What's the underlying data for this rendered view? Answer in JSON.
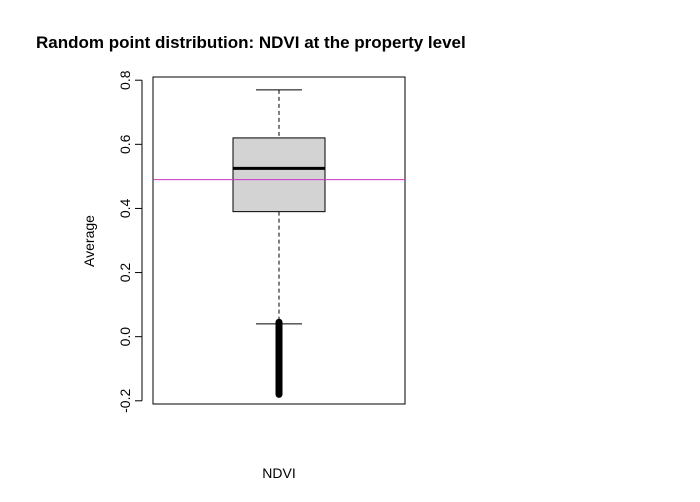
{
  "chart_data": {
    "type": "boxplot",
    "title": "Random point distribution: NDVI at the property level",
    "xlabel": "NDVI",
    "ylabel": "Average",
    "ylim": [
      -0.21,
      0.81
    ],
    "yticks": [
      -0.2,
      0.0,
      0.2,
      0.4,
      0.6,
      0.8
    ],
    "ytick_labels": [
      "-0.2",
      "0.0",
      "0.2",
      "0.4",
      "0.6",
      "0.8"
    ],
    "grid": false,
    "legend": "none",
    "box": {
      "name": "NDVI",
      "whisker_low": 0.04,
      "q1": 0.39,
      "median": 0.525,
      "q3": 0.62,
      "whisker_high": 0.77,
      "outlier_range": [
        -0.18,
        0.045
      ]
    },
    "reference_line": {
      "y": 0.49,
      "color": "#cc33cc"
    },
    "colors": {
      "box_fill": "#d3d3d3",
      "stroke": "#000000"
    }
  }
}
